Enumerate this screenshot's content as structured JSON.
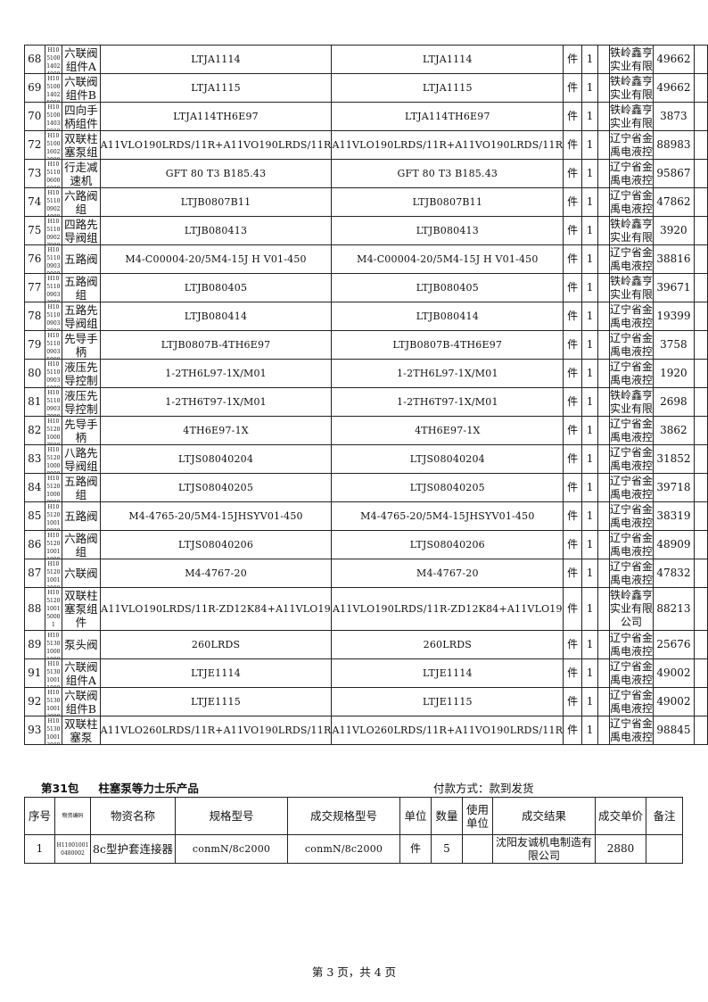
{
  "table1": {
    "rows": [
      [
        "68",
        "H105100140240001",
        "六联阀组件A",
        "LTJA1114",
        "LTJA1114",
        "件",
        "1",
        "",
        "铁岭鑫亨实业有限公司",
        "49662",
        ""
      ],
      [
        "69",
        "H105100140250001",
        "六联阀组件B",
        "LTJA1115",
        "LTJA1115",
        "件",
        "1",
        "",
        "铁岭鑫亨实业有限公司",
        "49662",
        ""
      ],
      [
        "70",
        "H105100140300001",
        "四向手柄组件",
        "LTJA114TH6E97",
        "LTJA114TH6E97",
        "件",
        "1",
        "",
        "铁岭鑫亨实业有限公司",
        "3873",
        ""
      ],
      [
        "72",
        "H105100160220001",
        "双联柱塞泵组件",
        "A11VLO190LRDS/11R+A11VO190LRDS/11R",
        "A11VLO190LRDS/11R+A11VO190LRDS/11R",
        "件",
        "1",
        "",
        "辽宁省金禹电液控制科技有限公司",
        "88983",
        ""
      ],
      [
        "73",
        "H105110060060001",
        "行走减速机",
        "GFT 80 T3 B185.43",
        "GFT 80 T3 B185.43",
        "件",
        "1",
        "",
        "辽宁省金禹电液控制科技有限公司",
        "95867",
        ""
      ],
      [
        "74",
        "H105110090240001",
        "六路阀组",
        "LTJB0807B11",
        "LTJB0807B11",
        "件",
        "1",
        "",
        "辽宁省金禹电液控制科技有限公司",
        "47862",
        ""
      ],
      [
        "75",
        "H105110090270001",
        "四路先导阀组",
        "LTJB080413",
        "LTJB080413",
        "件",
        "1",
        "",
        "铁岭鑫亨实业有限公司",
        "3920",
        ""
      ],
      [
        "76",
        "H105110090300001",
        "五路阀",
        "M4-C00004-20/5M4-15J H V01-450",
        "M4-C00004-20/5M4-15J H V01-450",
        "件",
        "1",
        "",
        "辽宁省金禹电液控制科技有限公司",
        "38816",
        ""
      ],
      [
        "77",
        "H105110090320001",
        "五路阀组",
        "LTJB080405",
        "LTJB080405",
        "件",
        "1",
        "",
        "铁岭鑫亨实业有限公司",
        "39671",
        ""
      ],
      [
        "78",
        "H105110090330001",
        "五路先导阀组",
        "LTJB080414",
        "LTJB080414",
        "件",
        "1",
        "",
        "辽宁省金禹电液控制科技有限公司",
        "19399",
        ""
      ],
      [
        "79",
        "H105110090350001",
        "先导手柄",
        "LTJB0807B-4TH6E97",
        "LTJB0807B-4TH6E97",
        "件",
        "1",
        "",
        "辽宁省金禹电液控制科技有限公司",
        "3758",
        ""
      ],
      [
        "80",
        "H105110090360001",
        "液压先导控制阀",
        "1-2TH6L97-1X/M01",
        "1-2TH6L97-1X/M01",
        "件",
        "1",
        "",
        "辽宁省金禹电液控制科技有限公司",
        "1920",
        ""
      ],
      [
        "81",
        "H105110090370001",
        "液压先导控制阀",
        "1-2TH6T97-1X/M01",
        "1-2TH6T97-1X/M01",
        "件",
        "1",
        "",
        "铁岭鑫亨实业有限公司",
        "2698",
        ""
      ],
      [
        "82",
        "H105120100070001",
        "先导手柄",
        "4TH6E97-1X",
        "4TH6E97-1X",
        "件",
        "1",
        "",
        "辽宁省金禹电液控制科技有限公司",
        "3862",
        ""
      ],
      [
        "83",
        "H105120100080001",
        "八路先导阀组",
        "LTJS08040204",
        "LTJS08040204",
        "件",
        "1",
        "",
        "辽宁省金禹电液控制科技有限公司",
        "31852",
        ""
      ],
      [
        "84",
        "H105120100090001",
        "五路阀组",
        "LTJS08040205",
        "LTJS08040205",
        "件",
        "1",
        "",
        "辽宁省金禹电液控制科技有限公司",
        "39718",
        ""
      ],
      [
        "85",
        "H105120100100001",
        "五路阀",
        "M4-4765-20/5M4-15JHSYV01-450",
        "M4-4765-20/5M4-15JHSYV01-450",
        "件",
        "1",
        "",
        "辽宁省金禹电液控制科技有限公司",
        "38319",
        ""
      ],
      [
        "86",
        "H105120100110001",
        "六路阀组",
        "LTJS08040206",
        "LTJS08040206",
        "件",
        "1",
        "",
        "辽宁省金禹电液控制科技有限公司",
        "48909",
        ""
      ],
      [
        "87",
        "H105120100120001",
        "六联阀",
        "M4-4767-20",
        "M4-4767-20",
        "件",
        "1",
        "",
        "辽宁省金禹电液控制科技有限公司",
        "47832",
        ""
      ],
      [
        "88",
        "H105120100150001",
        "双联柱塞泵组件",
        "A11VLO190LRDS/11R-ZD12K84+A11VLO19",
        "A11VLO190LRDS/11R-ZD12K84+A11VLO19",
        "件",
        "1",
        "",
        "铁岭鑫亨实业有限公司",
        "88213",
        ""
      ],
      [
        "89",
        "H105130100010001",
        "泵头阀",
        "260LRDS",
        "260LRDS",
        "件",
        "1",
        "",
        "辽宁省金禹电液控制科技有限公司",
        "25676",
        ""
      ],
      [
        "91",
        "H105130100110001",
        "六联阀组件A",
        "LTJE1114",
        "LTJE1114",
        "件",
        "1",
        "",
        "辽宁省金禹电液控制科技有限公司",
        "49002",
        ""
      ],
      [
        "92",
        "H105130100120001",
        "六联阀组件B",
        "LTJE1115",
        "LTJE1115",
        "件",
        "1",
        "",
        "辽宁省金禹电液控制科技有限公司",
        "49002",
        ""
      ],
      [
        "93",
        "H105130100130001",
        "双联柱塞泵",
        "A11VLO260LRDS/11R+A11VO190LRDS/11R",
        "A11VLO260LRDS/11R+A11VO190LRDS/11R",
        "件",
        "1",
        "",
        "辽宁省金禹电液控制科技有限公司",
        "98845",
        ""
      ]
    ]
  },
  "section2": {
    "package": "第31包",
    "title": "柱塞泵等力士乐产品",
    "payment": "付款方式：款到发货",
    "headers": [
      "序号",
      "物资编码",
      "物资名称",
      "规格型号",
      "成交规格型号",
      "单位",
      "数量",
      "使用单位",
      "成交结果",
      "成交单价",
      "备注"
    ],
    "rows": [
      [
        "1",
        "H110010010480002",
        "8c型护套连接器",
        "conmN/8c2000",
        "conmN/8c2000",
        "件",
        "5",
        "",
        "沈阳友诚机电制造有限公司",
        "2880",
        ""
      ]
    ]
  },
  "footer": "第 3 页，共 4 页"
}
